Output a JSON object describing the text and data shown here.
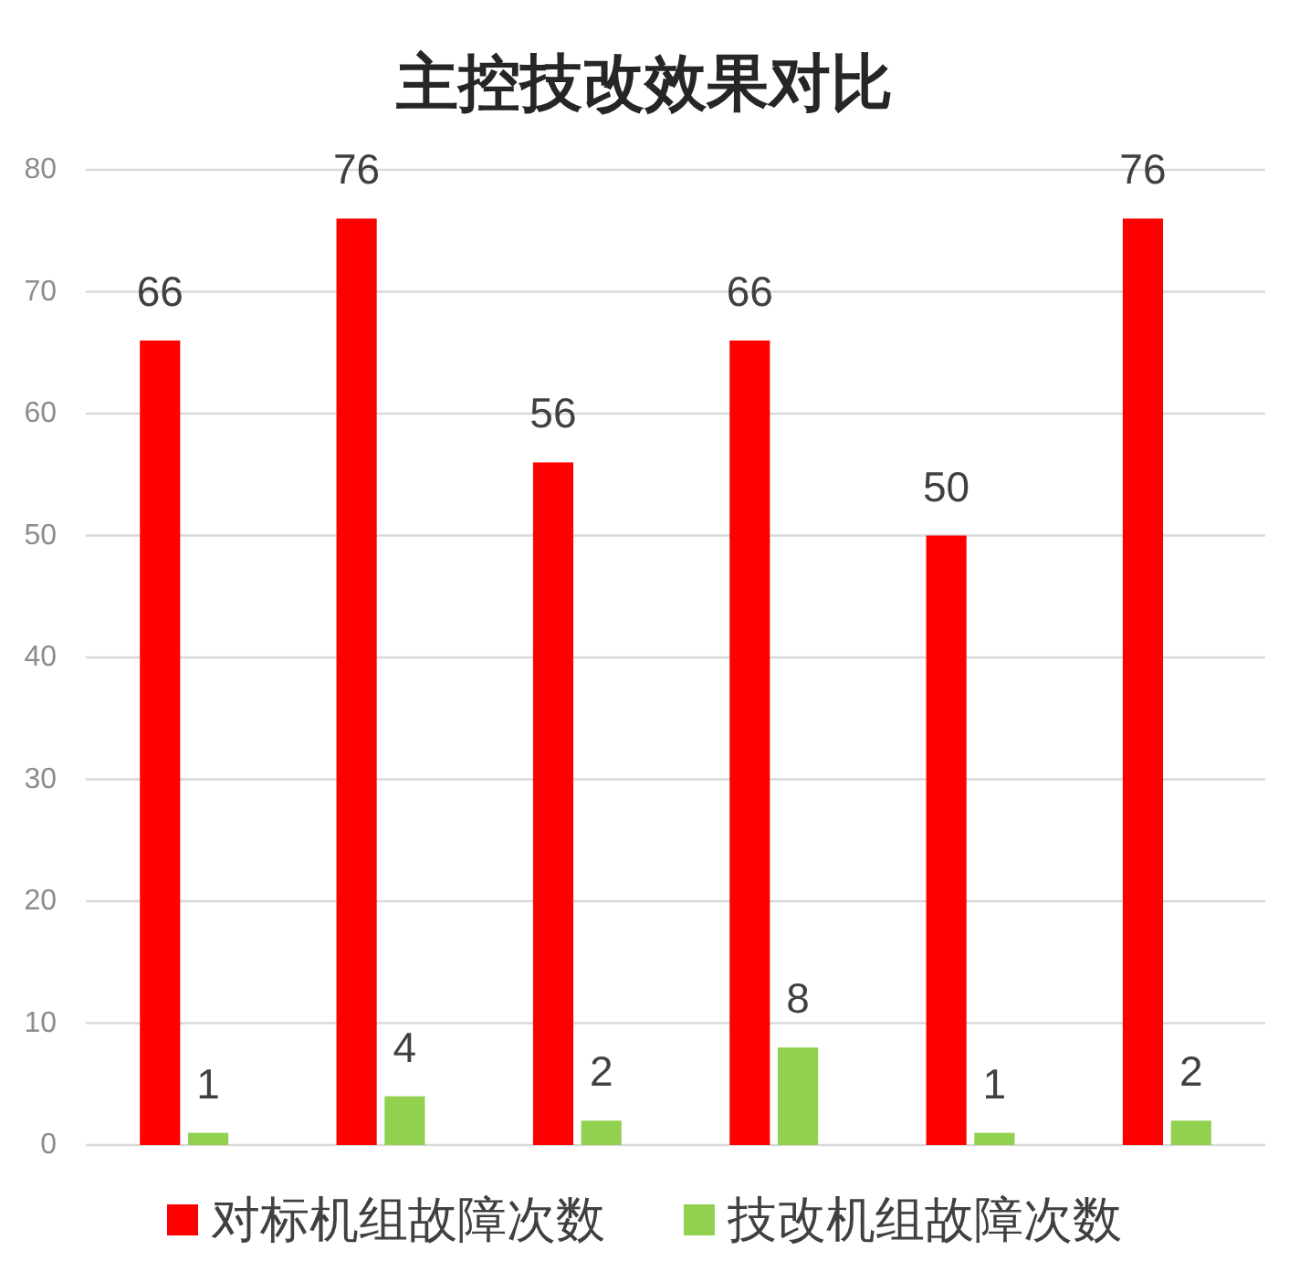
{
  "chart_data": {
    "type": "bar",
    "title": "主控技改效果对比",
    "categories": [
      null,
      null,
      null,
      null,
      null,
      null
    ],
    "series": [
      {
        "name": "对标机组故障次数",
        "color": "#ff0000",
        "values": [
          66,
          76,
          56,
          66,
          50,
          76
        ]
      },
      {
        "name": "技改机组故障次数",
        "color": "#92d050",
        "values": [
          1,
          4,
          2,
          8,
          1,
          2
        ]
      }
    ],
    "ylim": [
      0,
      80
    ],
    "yticks": [
      0,
      10,
      20,
      30,
      40,
      50,
      60,
      70,
      80
    ],
    "grid": "y",
    "legend": "bottom",
    "data_labels": true
  }
}
